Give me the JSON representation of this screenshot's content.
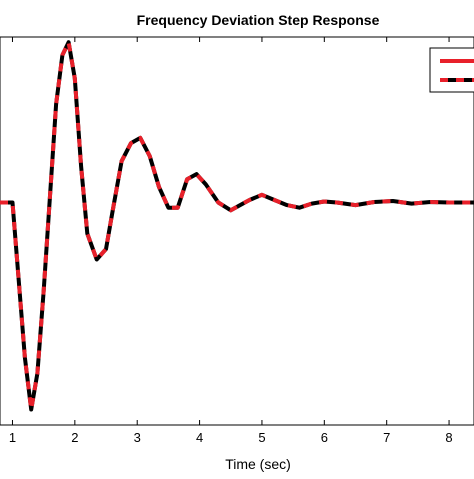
{
  "chart_data": {
    "type": "line",
    "title": "Frequency Deviation Step Response",
    "xlabel": "Time (sec)",
    "ylabel": "",
    "xlim": [
      0.8,
      8.4
    ],
    "ylim": [
      -4.3,
      3.2
    ],
    "x_ticks": [
      1,
      2,
      3,
      4,
      5,
      6,
      7,
      8
    ],
    "x_tick_labels": [
      "1",
      "2",
      "3",
      "4",
      "5",
      "6",
      "7",
      "8"
    ],
    "grid": false,
    "legend_placement": "top-right",
    "series": [
      {
        "color": "#000000",
        "style": "solid",
        "x": [
          0.8,
          1.0,
          1.1,
          1.2,
          1.3,
          1.4,
          1.5,
          1.6,
          1.7,
          1.8,
          1.9,
          2.0,
          2.1,
          2.2,
          2.35,
          2.5,
          2.6,
          2.75,
          2.9,
          3.05,
          3.2,
          3.35,
          3.5,
          3.65,
          3.8,
          3.95,
          4.1,
          4.3,
          4.5,
          4.65,
          4.8,
          5.0,
          5.2,
          5.4,
          5.6,
          5.8,
          6.0,
          6.2,
          6.5,
          6.8,
          7.1,
          7.4,
          7.7,
          8.0,
          8.4
        ],
        "y": [
          0.0,
          0.0,
          -1.5,
          -3.0,
          -4.0,
          -3.3,
          -1.7,
          0.1,
          1.9,
          2.85,
          3.1,
          2.4,
          0.7,
          -0.6,
          -1.1,
          -0.9,
          -0.2,
          0.8,
          1.15,
          1.25,
          0.9,
          0.3,
          -0.1,
          -0.1,
          0.45,
          0.55,
          0.35,
          0.0,
          -0.15,
          -0.05,
          0.05,
          0.15,
          0.05,
          -0.05,
          -0.1,
          -0.02,
          0.02,
          0.0,
          -0.05,
          0.01,
          0.03,
          -0.02,
          0.01,
          0.0,
          0.0
        ]
      },
      {
        "color": "#e8202a",
        "style": "dashed",
        "x": [
          0.8,
          1.0,
          1.1,
          1.2,
          1.3,
          1.4,
          1.5,
          1.6,
          1.7,
          1.8,
          1.9,
          2.0,
          2.1,
          2.2,
          2.35,
          2.5,
          2.6,
          2.75,
          2.9,
          3.05,
          3.2,
          3.35,
          3.5,
          3.65,
          3.8,
          3.95,
          4.1,
          4.3,
          4.5,
          4.65,
          4.8,
          5.0,
          5.2,
          5.4,
          5.6,
          5.8,
          6.0,
          6.2,
          6.5,
          6.8,
          7.1,
          7.4,
          7.7,
          8.0,
          8.4
        ],
        "y": [
          0.0,
          0.0,
          -1.5,
          -3.0,
          -4.0,
          -3.3,
          -1.7,
          0.1,
          1.9,
          2.85,
          3.1,
          2.4,
          0.7,
          -0.6,
          -1.1,
          -0.9,
          -0.2,
          0.8,
          1.15,
          1.25,
          0.9,
          0.3,
          -0.1,
          -0.1,
          0.45,
          0.55,
          0.35,
          0.0,
          -0.15,
          -0.05,
          0.05,
          0.15,
          0.05,
          -0.05,
          -0.1,
          -0.02,
          0.02,
          0.0,
          -0.05,
          0.01,
          0.03,
          -0.02,
          0.01,
          0.0,
          0.0
        ]
      }
    ]
  }
}
